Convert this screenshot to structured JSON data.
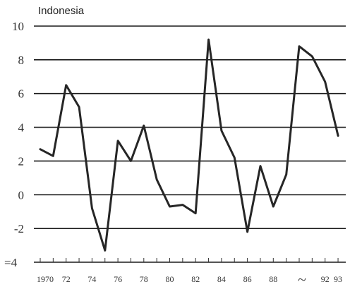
{
  "chart_data": {
    "type": "line",
    "title": "Indonesia",
    "xlabel": "",
    "ylabel": "",
    "ylim": [
      -4,
      10
    ],
    "yticks": [
      -4,
      -2,
      0,
      2,
      4,
      6,
      8,
      10
    ],
    "ytick_labels": [
      "=4",
      "-2",
      "0",
      "2",
      "4",
      "6",
      "8",
      "10"
    ],
    "grid": true,
    "x": [
      "1970",
      "1971",
      "1972",
      "1973",
      "1974",
      "1975",
      "1976",
      "1977",
      "1978",
      "1979",
      "1980",
      "1981",
      "1982",
      "1983",
      "1984",
      "1985",
      "1986",
      "1987",
      "1988",
      "1989",
      "1990",
      "1991",
      "1992",
      "1993"
    ],
    "xtick_labels": [
      {
        "year": "1970",
        "text": "1970"
      },
      {
        "year": "1972",
        "text": "72"
      },
      {
        "year": "1974",
        "text": "74"
      },
      {
        "year": "1976",
        "text": "76"
      },
      {
        "year": "1978",
        "text": "78"
      },
      {
        "year": "1980",
        "text": "80"
      },
      {
        "year": "1982",
        "text": "82"
      },
      {
        "year": "1984",
        "text": "84"
      },
      {
        "year": "1986",
        "text": "86"
      },
      {
        "year": "1988",
        "text": "88"
      },
      {
        "year": "1992",
        "text": "92"
      },
      {
        "year": "1993",
        "text": "93"
      }
    ],
    "axis_mark": "~",
    "series": [
      {
        "name": "",
        "values": [
          2.7,
          2.3,
          6.5,
          5.2,
          -0.8,
          -3.3,
          3.2,
          2.0,
          4.1,
          0.9,
          -0.7,
          -0.6,
          -1.1,
          9.2,
          3.8,
          2.2,
          -2.2,
          1.7,
          -0.7,
          1.2,
          8.8,
          8.2,
          6.7,
          3.5
        ]
      }
    ]
  }
}
